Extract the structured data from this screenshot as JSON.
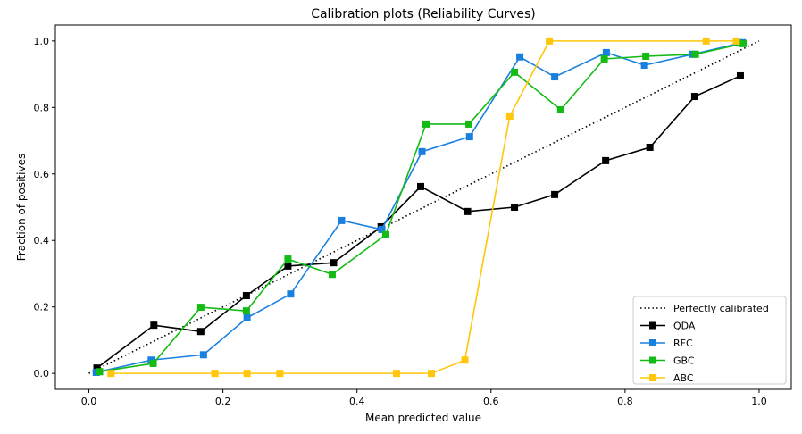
{
  "chart_data": {
    "type": "line",
    "title": "Calibration plots (Reliability Curves)",
    "xlabel": "Mean predicted value",
    "ylabel": "Fraction of positives",
    "xlim": [
      -0.05,
      1.048
    ],
    "ylim": [
      -0.048,
      1.048
    ],
    "xticks": [
      "0.0",
      "0.2",
      "0.4",
      "0.6",
      "0.8",
      "1.0"
    ],
    "yticks": [
      "0.0",
      "0.2",
      "0.4",
      "0.6",
      "0.8",
      "1.0"
    ],
    "grid": false,
    "legend_position": "lower-right",
    "series": [
      {
        "name": "Perfectly calibrated",
        "color": "#000000",
        "style": "dotted",
        "marker": "none",
        "x": [
          0,
          1
        ],
        "y": [
          0,
          1
        ]
      },
      {
        "name": "QDA",
        "color": "#000000",
        "style": "solid",
        "marker": "square",
        "x": [
          0.012,
          0.097,
          0.167,
          0.235,
          0.297,
          0.365,
          0.436,
          0.495,
          0.565,
          0.635,
          0.695,
          0.771,
          0.837,
          0.904,
          0.972
        ],
        "y": [
          0.016,
          0.145,
          0.126,
          0.234,
          0.323,
          0.333,
          0.441,
          0.562,
          0.487,
          0.5,
          0.538,
          0.64,
          0.68,
          0.833,
          0.895
        ]
      },
      {
        "name": "RFC",
        "color": "#1a80e0",
        "style": "solid",
        "marker": "square",
        "x": [
          0.011,
          0.093,
          0.171,
          0.236,
          0.301,
          0.377,
          0.437,
          0.497,
          0.568,
          0.643,
          0.695,
          0.772,
          0.829,
          0.901,
          0.975
        ],
        "y": [
          0.003,
          0.04,
          0.056,
          0.167,
          0.239,
          0.46,
          0.433,
          0.667,
          0.712,
          0.952,
          0.892,
          0.965,
          0.927,
          0.96,
          0.995
        ]
      },
      {
        "name": "GBC",
        "color": "#14bb14",
        "style": "solid",
        "marker": "square",
        "x": [
          0.016,
          0.096,
          0.167,
          0.235,
          0.297,
          0.363,
          0.443,
          0.503,
          0.567,
          0.635,
          0.704,
          0.769,
          0.831,
          0.905,
          0.976
        ],
        "y": [
          0.005,
          0.03,
          0.199,
          0.188,
          0.344,
          0.298,
          0.417,
          0.75,
          0.75,
          0.906,
          0.793,
          0.946,
          0.954,
          0.96,
          0.992
        ]
      },
      {
        "name": "ABC",
        "color": "#ffc60a",
        "style": "solid",
        "marker": "square",
        "x": [
          0.033,
          0.188,
          0.236,
          0.285,
          0.459,
          0.511,
          0.561,
          0.628,
          0.687,
          0.921,
          0.966
        ],
        "y": [
          0,
          0,
          0,
          0,
          0,
          0,
          0.04,
          0.774,
          1,
          1,
          1
        ]
      }
    ]
  }
}
